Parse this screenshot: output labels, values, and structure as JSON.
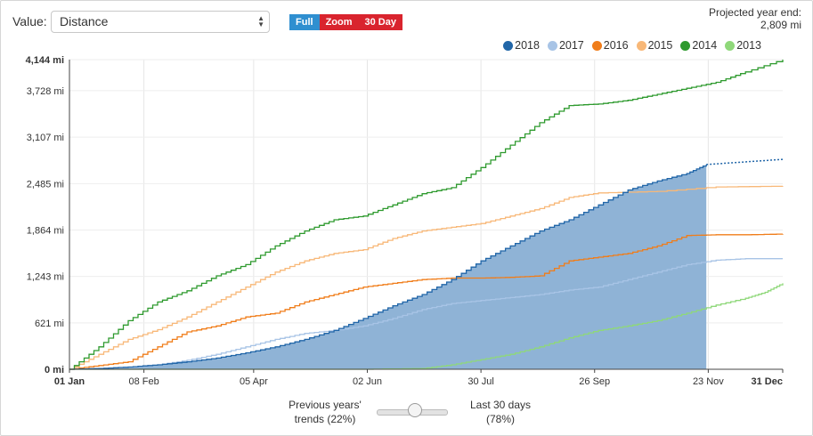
{
  "controls": {
    "value_label": "Value:",
    "value_select": "Distance",
    "buttons": [
      "Full",
      "Zoom",
      "30 Day"
    ]
  },
  "projection": {
    "label": "Projected year end:",
    "value": "2,809 mi"
  },
  "slider": {
    "left_line1": "Previous years'",
    "left_line2": "trends (22%)",
    "right_line1": "Last 30 days",
    "right_line2": "(78%)",
    "previous_pct": 22,
    "last30_pct": 78
  },
  "colors": {
    "2018": "#2166a8",
    "2018_fill": "#8fb3d6",
    "2017": "#a8c4e6",
    "2016": "#f07d1a",
    "2015": "#f8b878",
    "2014": "#2e9a2e",
    "2013": "#8fd87a"
  },
  "chart_data": {
    "type": "line",
    "ylim": [
      0,
      4144
    ],
    "y_ticks": [
      0,
      621,
      1243,
      1864,
      2485,
      3107,
      3728,
      4144
    ],
    "y_tick_labels": [
      "0 mi",
      "621 mi",
      "1,243 mi",
      "1,864 mi",
      "2,485 mi",
      "3,107 mi",
      "3,728 mi",
      "4,144 mi"
    ],
    "x_ticks": [
      0,
      38,
      94,
      152,
      210,
      268,
      326,
      364
    ],
    "x_tick_labels": [
      "01 Jan",
      "08 Feb",
      "05 Apr",
      "02 Jun",
      "30 Jul",
      "26 Sep",
      "23 Nov",
      "31 Dec"
    ],
    "legend": [
      "2018",
      "2017",
      "2016",
      "2015",
      "2014",
      "2013"
    ],
    "series": [
      {
        "name": "2014",
        "x": [
          0,
          15,
          30,
          45,
          60,
          75,
          90,
          105,
          120,
          135,
          150,
          165,
          180,
          195,
          210,
          225,
          240,
          255,
          270,
          285,
          300,
          315,
          330,
          345,
          364
        ],
        "values": [
          0,
          300,
          650,
          900,
          1050,
          1250,
          1400,
          1650,
          1850,
          2000,
          2050,
          2200,
          2350,
          2430,
          2700,
          3000,
          3300,
          3530,
          3550,
          3600,
          3680,
          3760,
          3840,
          3980,
          4144
        ]
      },
      {
        "name": "2015",
        "x": [
          0,
          15,
          30,
          45,
          60,
          75,
          90,
          105,
          120,
          135,
          150,
          165,
          180,
          195,
          210,
          225,
          240,
          255,
          270,
          300,
          330,
          364
        ],
        "values": [
          0,
          200,
          400,
          530,
          700,
          900,
          1100,
          1300,
          1450,
          1550,
          1600,
          1750,
          1850,
          1900,
          1950,
          2050,
          2150,
          2300,
          2360,
          2380,
          2440,
          2450
        ]
      },
      {
        "name": "2016",
        "x": [
          0,
          15,
          30,
          45,
          60,
          75,
          90,
          105,
          120,
          135,
          150,
          165,
          180,
          195,
          210,
          225,
          240,
          255,
          270,
          285,
          300,
          315,
          330,
          345,
          364
        ],
        "values": [
          0,
          50,
          100,
          300,
          500,
          580,
          700,
          750,
          900,
          1000,
          1100,
          1150,
          1200,
          1220,
          1220,
          1230,
          1250,
          1450,
          1500,
          1550,
          1650,
          1790,
          1800,
          1800,
          1810
        ]
      },
      {
        "name": "2017",
        "x": [
          0,
          15,
          30,
          45,
          60,
          75,
          90,
          105,
          120,
          135,
          150,
          165,
          180,
          195,
          210,
          225,
          240,
          255,
          270,
          285,
          300,
          315,
          330,
          345,
          364
        ],
        "values": [
          0,
          10,
          20,
          60,
          120,
          200,
          300,
          400,
          480,
          520,
          580,
          680,
          800,
          880,
          920,
          960,
          1000,
          1060,
          1100,
          1200,
          1300,
          1400,
          1460,
          1480,
          1480
        ]
      },
      {
        "name": "2013",
        "x": [
          0,
          30,
          60,
          90,
          120,
          150,
          180,
          195,
          210,
          225,
          240,
          255,
          270,
          285,
          300,
          315,
          330,
          345,
          355,
          364
        ],
        "values": [
          0,
          0,
          0,
          0,
          0,
          0,
          10,
          60,
          130,
          200,
          300,
          420,
          520,
          580,
          650,
          750,
          860,
          950,
          1030,
          1150
        ]
      },
      {
        "name": "2018",
        "fill": true,
        "x": [
          0,
          15,
          30,
          45,
          60,
          75,
          90,
          105,
          120,
          135,
          150,
          165,
          180,
          195,
          210,
          225,
          240,
          255,
          270,
          285,
          300,
          315,
          325
        ],
        "values": [
          0,
          10,
          30,
          60,
          100,
          150,
          220,
          300,
          400,
          520,
          680,
          850,
          1000,
          1200,
          1450,
          1650,
          1850,
          2000,
          2200,
          2400,
          2520,
          2620,
          2740
        ],
        "projection": {
          "x": [
            325,
            364
          ],
          "values": [
            2740,
            2809
          ]
        }
      }
    ]
  }
}
